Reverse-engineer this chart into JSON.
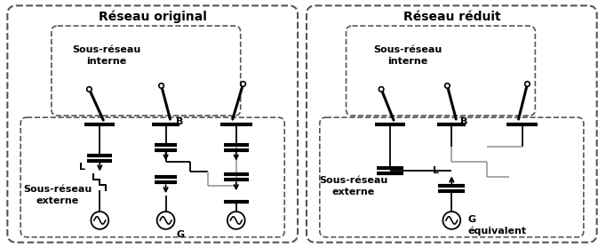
{
  "fig_width": 6.82,
  "fig_height": 2.79,
  "dpi": 100,
  "bg_color": "#ffffff",
  "title_left": "Réseau original",
  "title_right": "Réseau réduit",
  "label_sous_reseau_interne": "Sous-réseau\ninterne",
  "label_sous_reseau_externe_left": "Sous-réseau\nexterne",
  "label_sous_reseau_externe_right": "Sous-réseau\nexterne",
  "label_B": "B",
  "label_L": "L",
  "label_G": "G",
  "label_G_equiv": "G\néquivalent",
  "line_color": "#000000",
  "gray_color": "#a0a0a0",
  "thick_lw": 3.0,
  "thin_lw": 1.3,
  "outer_rect_color": "#555555",
  "inner_rect_color": "#555555"
}
